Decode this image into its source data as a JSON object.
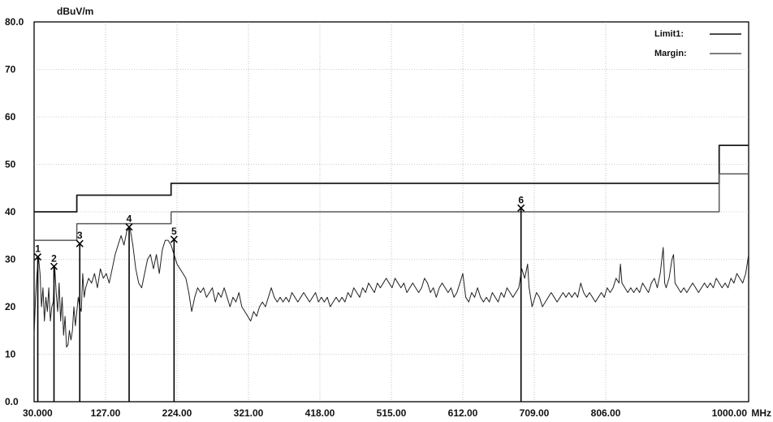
{
  "chart_data": {
    "type": "line",
    "y_unit": "dBuV/m",
    "x_unit": "MHz",
    "xlim": [
      30,
      1000
    ],
    "ylim": [
      0,
      80
    ],
    "grid": true,
    "legend_position": "top-right",
    "x_tick_labels": [
      {
        "value": 30,
        "label": "30.000"
      },
      {
        "value": 127,
        "label": "127.00"
      },
      {
        "value": 224,
        "label": "224.00"
      },
      {
        "value": 321,
        "label": "321.00"
      },
      {
        "value": 418,
        "label": "418.00"
      },
      {
        "value": 515,
        "label": "515.00"
      },
      {
        "value": 612,
        "label": "612.00"
      },
      {
        "value": 709,
        "label": "709.00"
      },
      {
        "value": 806,
        "label": "806.00"
      },
      {
        "value": 1000,
        "label": "1000.00"
      }
    ],
    "y_tick_labels": [
      {
        "value": 0,
        "label": "0.0"
      },
      {
        "value": 10,
        "label": "10"
      },
      {
        "value": 20,
        "label": "20"
      },
      {
        "value": 30,
        "label": "30"
      },
      {
        "value": 40,
        "label": "40"
      },
      {
        "value": 50,
        "label": "50"
      },
      {
        "value": 60,
        "label": "60"
      },
      {
        "value": 70,
        "label": "70"
      },
      {
        "value": 80,
        "label": "80.0"
      }
    ],
    "series": [
      {
        "name": "Limit1:",
        "style": "dark",
        "points": [
          [
            30,
            40
          ],
          [
            88,
            40
          ],
          [
            88,
            43.5
          ],
          [
            216,
            43.5
          ],
          [
            216,
            46
          ],
          [
            960,
            46
          ],
          [
            960,
            54
          ],
          [
            1000,
            54
          ]
        ]
      },
      {
        "name": "Margin:",
        "style": "light",
        "points": [
          [
            30,
            34
          ],
          [
            88,
            34
          ],
          [
            88,
            37.5
          ],
          [
            216,
            37.5
          ],
          [
            216,
            40
          ],
          [
            960,
            40
          ],
          [
            960,
            48
          ],
          [
            1000,
            48
          ]
        ]
      },
      {
        "style": "trace",
        "points": [
          [
            30,
            14
          ],
          [
            32,
            22
          ],
          [
            34,
            27
          ],
          [
            36,
            30.5
          ],
          [
            38,
            27
          ],
          [
            40,
            20
          ],
          [
            42,
            24
          ],
          [
            44,
            17
          ],
          [
            46,
            22
          ],
          [
            48,
            19
          ],
          [
            50,
            24
          ],
          [
            52,
            17
          ],
          [
            54,
            20
          ],
          [
            56,
            21
          ],
          [
            58,
            28.5
          ],
          [
            60,
            23
          ],
          [
            62,
            19
          ],
          [
            64,
            25
          ],
          [
            66,
            17
          ],
          [
            68,
            22
          ],
          [
            70,
            14
          ],
          [
            72,
            18
          ],
          [
            74,
            11.5
          ],
          [
            76,
            12
          ],
          [
            78,
            15
          ],
          [
            80,
            13
          ],
          [
            82,
            15
          ],
          [
            84,
            20
          ],
          [
            86,
            16
          ],
          [
            88,
            19
          ],
          [
            90,
            22
          ],
          [
            92,
            20
          ],
          [
            94,
            19
          ],
          [
            96,
            27
          ],
          [
            98,
            22
          ],
          [
            100,
            24
          ],
          [
            104,
            26
          ],
          [
            108,
            25
          ],
          [
            112,
            27
          ],
          [
            116,
            24
          ],
          [
            120,
            28
          ],
          [
            124,
            26
          ],
          [
            128,
            27
          ],
          [
            132,
            25
          ],
          [
            136,
            28
          ],
          [
            140,
            31
          ],
          [
            144,
            33
          ],
          [
            148,
            35
          ],
          [
            152,
            33
          ],
          [
            156,
            36
          ],
          [
            160,
            36.8
          ],
          [
            164,
            33
          ],
          [
            168,
            28
          ],
          [
            172,
            25
          ],
          [
            176,
            24
          ],
          [
            180,
            27
          ],
          [
            184,
            30
          ],
          [
            188,
            31
          ],
          [
            192,
            28
          ],
          [
            196,
            31
          ],
          [
            200,
            27
          ],
          [
            204,
            32
          ],
          [
            208,
            34
          ],
          [
            212,
            34
          ],
          [
            216,
            33
          ],
          [
            220,
            31
          ],
          [
            224,
            29
          ],
          [
            228,
            28
          ],
          [
            232,
            27
          ],
          [
            236,
            26
          ],
          [
            240,
            23
          ],
          [
            244,
            19
          ],
          [
            248,
            22
          ],
          [
            252,
            24
          ],
          [
            256,
            23
          ],
          [
            260,
            24
          ],
          [
            264,
            22
          ],
          [
            268,
            23
          ],
          [
            272,
            24
          ],
          [
            276,
            21
          ],
          [
            280,
            23
          ],
          [
            284,
            22
          ],
          [
            288,
            24
          ],
          [
            292,
            22
          ],
          [
            296,
            20
          ],
          [
            300,
            22
          ],
          [
            304,
            21
          ],
          [
            308,
            23
          ],
          [
            312,
            20
          ],
          [
            316,
            19
          ],
          [
            320,
            18
          ],
          [
            324,
            17
          ],
          [
            328,
            19
          ],
          [
            332,
            18
          ],
          [
            336,
            20
          ],
          [
            340,
            21
          ],
          [
            344,
            20
          ],
          [
            348,
            22
          ],
          [
            352,
            24
          ],
          [
            356,
            22
          ],
          [
            360,
            21
          ],
          [
            364,
            22
          ],
          [
            368,
            21
          ],
          [
            372,
            22
          ],
          [
            376,
            21
          ],
          [
            380,
            23
          ],
          [
            384,
            22
          ],
          [
            388,
            21
          ],
          [
            392,
            22
          ],
          [
            396,
            23
          ],
          [
            400,
            22
          ],
          [
            404,
            21
          ],
          [
            408,
            22
          ],
          [
            412,
            23
          ],
          [
            416,
            21
          ],
          [
            420,
            22
          ],
          [
            424,
            21
          ],
          [
            428,
            22
          ],
          [
            432,
            20
          ],
          [
            436,
            21
          ],
          [
            440,
            22
          ],
          [
            444,
            21
          ],
          [
            448,
            22
          ],
          [
            452,
            21
          ],
          [
            456,
            23
          ],
          [
            460,
            22
          ],
          [
            464,
            24
          ],
          [
            468,
            23
          ],
          [
            472,
            22
          ],
          [
            476,
            24
          ],
          [
            480,
            23
          ],
          [
            484,
            25
          ],
          [
            488,
            24
          ],
          [
            492,
            23
          ],
          [
            496,
            25
          ],
          [
            500,
            24
          ],
          [
            504,
            25
          ],
          [
            508,
            26
          ],
          [
            512,
            25
          ],
          [
            516,
            24
          ],
          [
            520,
            26
          ],
          [
            524,
            25
          ],
          [
            528,
            24
          ],
          [
            532,
            25
          ],
          [
            536,
            23
          ],
          [
            540,
            24
          ],
          [
            544,
            25
          ],
          [
            548,
            24
          ],
          [
            552,
            23
          ],
          [
            556,
            24
          ],
          [
            560,
            26
          ],
          [
            564,
            25
          ],
          [
            568,
            23
          ],
          [
            572,
            24
          ],
          [
            576,
            22
          ],
          [
            580,
            24
          ],
          [
            584,
            25
          ],
          [
            588,
            24
          ],
          [
            592,
            23
          ],
          [
            596,
            24
          ],
          [
            600,
            22
          ],
          [
            604,
            23
          ],
          [
            608,
            25
          ],
          [
            612,
            27
          ],
          [
            616,
            22
          ],
          [
            620,
            21
          ],
          [
            624,
            23
          ],
          [
            628,
            22
          ],
          [
            632,
            24
          ],
          [
            636,
            22
          ],
          [
            640,
            21
          ],
          [
            644,
            22
          ],
          [
            648,
            21
          ],
          [
            652,
            23
          ],
          [
            656,
            22
          ],
          [
            660,
            21
          ],
          [
            664,
            23
          ],
          [
            668,
            22
          ],
          [
            672,
            24
          ],
          [
            676,
            23
          ],
          [
            680,
            22
          ],
          [
            684,
            23
          ],
          [
            688,
            24
          ],
          [
            692,
            28
          ],
          [
            696,
            26
          ],
          [
            700,
            29
          ],
          [
            702,
            24
          ],
          [
            704,
            22
          ],
          [
            706,
            20
          ],
          [
            708,
            21
          ],
          [
            712,
            23
          ],
          [
            716,
            22
          ],
          [
            720,
            20
          ],
          [
            724,
            21
          ],
          [
            728,
            22
          ],
          [
            732,
            23
          ],
          [
            736,
            22
          ],
          [
            740,
            21
          ],
          [
            744,
            22
          ],
          [
            748,
            23
          ],
          [
            752,
            22
          ],
          [
            756,
            23
          ],
          [
            760,
            22
          ],
          [
            764,
            23
          ],
          [
            768,
            22
          ],
          [
            772,
            25
          ],
          [
            776,
            23
          ],
          [
            780,
            22
          ],
          [
            784,
            23
          ],
          [
            788,
            22
          ],
          [
            792,
            21
          ],
          [
            796,
            22
          ],
          [
            800,
            23
          ],
          [
            804,
            22
          ],
          [
            808,
            24
          ],
          [
            812,
            23
          ],
          [
            816,
            24
          ],
          [
            820,
            26
          ],
          [
            824,
            25
          ],
          [
            826,
            29
          ],
          [
            828,
            25
          ],
          [
            832,
            24
          ],
          [
            836,
            23
          ],
          [
            840,
            24
          ],
          [
            844,
            23
          ],
          [
            848,
            24
          ],
          [
            852,
            23
          ],
          [
            856,
            25
          ],
          [
            860,
            24
          ],
          [
            864,
            23
          ],
          [
            868,
            25
          ],
          [
            872,
            26
          ],
          [
            876,
            24
          ],
          [
            880,
            27
          ],
          [
            884,
            32.5
          ],
          [
            886,
            25
          ],
          [
            888,
            24
          ],
          [
            892,
            26
          ],
          [
            896,
            30
          ],
          [
            898,
            31
          ],
          [
            900,
            25
          ],
          [
            904,
            24
          ],
          [
            908,
            23
          ],
          [
            912,
            24
          ],
          [
            916,
            23
          ],
          [
            920,
            24
          ],
          [
            924,
            25
          ],
          [
            928,
            24
          ],
          [
            932,
            23
          ],
          [
            936,
            24
          ],
          [
            940,
            25
          ],
          [
            944,
            24
          ],
          [
            948,
            25
          ],
          [
            952,
            24
          ],
          [
            956,
            26
          ],
          [
            960,
            25
          ],
          [
            964,
            24
          ],
          [
            968,
            25
          ],
          [
            972,
            24
          ],
          [
            976,
            26
          ],
          [
            980,
            25
          ],
          [
            984,
            27
          ],
          [
            988,
            26
          ],
          [
            992,
            25
          ],
          [
            996,
            27
          ],
          [
            1000,
            31
          ]
        ]
      }
    ],
    "markers": [
      {
        "label": "1",
        "x": 35,
        "y": 30.5
      },
      {
        "label": "2",
        "x": 57,
        "y": 28.5
      },
      {
        "label": "3",
        "x": 92,
        "y": 33.3
      },
      {
        "label": "4",
        "x": 159,
        "y": 36.8
      },
      {
        "label": "5",
        "x": 220,
        "y": 34.2
      },
      {
        "label": "6",
        "x": 691,
        "y": 40.8
      }
    ]
  }
}
